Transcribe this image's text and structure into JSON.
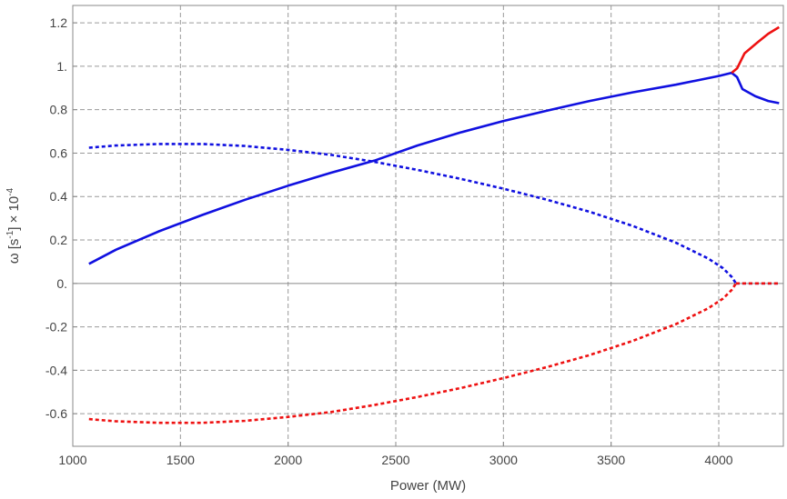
{
  "chart_data": {
    "type": "line",
    "title": "",
    "xlabel": "Power (MW)",
    "ylabel_parts": [
      "ω [s",
      "-1",
      "] × 10",
      "-4"
    ],
    "xlim": [
      1000,
      4300
    ],
    "ylim": [
      -0.75,
      1.28
    ],
    "xticks": [
      1000,
      1500,
      2000,
      2500,
      3000,
      3500,
      4000
    ],
    "xtick_labels": [
      "1000",
      "1500",
      "2000",
      "2500",
      "3000",
      "3500",
      "4000"
    ],
    "yticks": [
      -0.6,
      -0.4,
      -0.2,
      0,
      0.2,
      0.4,
      0.6,
      0.8,
      1.0,
      1.2
    ],
    "ytick_labels": [
      "-0.6",
      "-0.4",
      "-0.2",
      "0.",
      "0.2",
      "0.4",
      "0.6",
      "0.8",
      "1.",
      "1.2"
    ],
    "grid": true,
    "colors": {
      "blue": "#1010e0",
      "red": "#ee1111"
    },
    "series": [
      {
        "id": "blue-solid",
        "color": "blue",
        "dash": false,
        "x": [
          1075,
          1200,
          1400,
          1600,
          1800,
          2000,
          2200,
          2400,
          2600,
          2800,
          3000,
          3200,
          3400,
          3600,
          3800,
          4000,
          4060,
          4085,
          4110,
          4170,
          4230,
          4280
        ],
        "y": [
          0.09,
          0.155,
          0.24,
          0.315,
          0.385,
          0.45,
          0.51,
          0.565,
          0.635,
          0.695,
          0.748,
          0.795,
          0.84,
          0.88,
          0.915,
          0.955,
          0.97,
          0.95,
          0.895,
          0.862,
          0.84,
          0.83
        ]
      },
      {
        "id": "red-solid",
        "color": "red",
        "dash": false,
        "x": [
          4060,
          4085,
          4120,
          4180,
          4230,
          4280
        ],
        "y": [
          0.97,
          0.99,
          1.06,
          1.11,
          1.15,
          1.18
        ]
      },
      {
        "id": "blue-dotted",
        "color": "blue",
        "dash": true,
        "x": [
          1075,
          1200,
          1400,
          1600,
          1800,
          2000,
          2200,
          2400,
          2600,
          2800,
          3000,
          3200,
          3400,
          3600,
          3800,
          3950,
          4020,
          4060,
          4080
        ],
        "y": [
          0.625,
          0.635,
          0.642,
          0.642,
          0.633,
          0.615,
          0.592,
          0.56,
          0.523,
          0.482,
          0.436,
          0.386,
          0.33,
          0.265,
          0.188,
          0.115,
          0.07,
          0.03,
          0.0
        ]
      },
      {
        "id": "red-dotted",
        "color": "red",
        "dash": true,
        "x": [
          1075,
          1200,
          1400,
          1600,
          1800,
          2000,
          2200,
          2400,
          2600,
          2800,
          3000,
          3200,
          3400,
          3600,
          3800,
          3950,
          4020,
          4060,
          4080
        ],
        "y": [
          -0.625,
          -0.635,
          -0.642,
          -0.642,
          -0.633,
          -0.615,
          -0.592,
          -0.56,
          -0.523,
          -0.482,
          -0.436,
          -0.386,
          -0.33,
          -0.265,
          -0.188,
          -0.115,
          -0.07,
          -0.03,
          0.0
        ]
      },
      {
        "id": "blue-zero-dotted",
        "color": "blue",
        "dash": true,
        "x": [
          4080,
          4180,
          4285
        ],
        "y": [
          0.0,
          0.0,
          0.0
        ]
      },
      {
        "id": "red-zero-dotted",
        "color": "red",
        "dash": true,
        "x": [
          4080,
          4180,
          4285
        ],
        "y": [
          0.0,
          0.0,
          0.0
        ]
      }
    ]
  }
}
